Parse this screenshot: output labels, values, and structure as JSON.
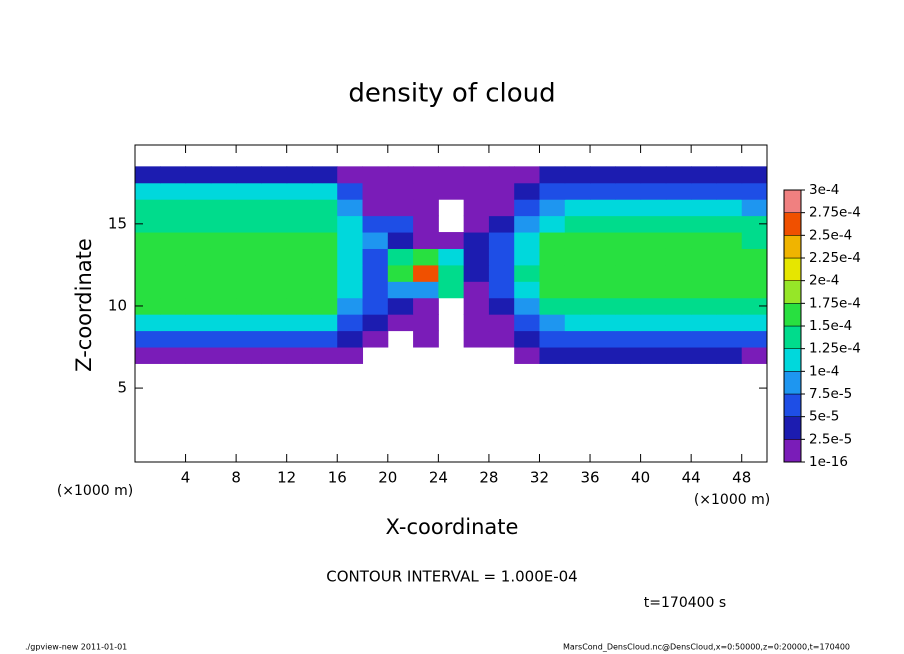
{
  "chart_data": {
    "type": "contour",
    "title": "density of cloud",
    "xlabel": "X-coordinate",
    "ylabel": "Z-coordinate",
    "x_unit_left": "(×1000 m)",
    "x_unit_right": "(×1000 m)",
    "contour_interval": "CONTOUR INTERVAL = 1.000E-04",
    "time_label": "t=170400 s",
    "footer_left": "./gpview-new  2011-01-01",
    "footer_right": "MarsCond_DensCloud.nc@DensCloud,x=0:50000,z=0:20000,t=170400",
    "xlim": [
      0,
      50
    ],
    "ylim": [
      0.5,
      19.8
    ],
    "xticks": [
      4,
      8,
      12,
      16,
      20,
      24,
      28,
      32,
      36,
      40,
      44,
      48
    ],
    "yticks": [
      5,
      10,
      15
    ],
    "x": [
      1,
      3,
      5,
      7,
      9,
      11,
      13,
      15,
      17,
      19,
      21,
      23,
      25,
      27,
      29,
      31,
      33,
      35,
      37,
      39,
      41,
      43,
      45,
      47,
      49
    ],
    "y": [
      7,
      8,
      9,
      10,
      11,
      12,
      13,
      14,
      15,
      16,
      17,
      18
    ],
    "z": [
      [
        2e-05,
        2e-05,
        2e-05,
        2e-05,
        2e-05,
        2e-05,
        2e-05,
        2e-05,
        1e-05,
        null,
        null,
        null,
        null,
        null,
        null,
        1e-05,
        3e-05,
        3e-05,
        3e-05,
        3e-05,
        3e-05,
        3e-05,
        3e-05,
        3e-05,
        2e-05
      ],
      [
        6e-05,
        6e-05,
        6e-05,
        6e-05,
        6e-05,
        6e-05,
        6e-05,
        6e-05,
        3e-05,
        1e-05,
        null,
        1e-05,
        null,
        1e-05,
        1e-05,
        3e-05,
        7e-05,
        7e-05,
        7e-05,
        7e-05,
        7e-05,
        7e-05,
        7e-05,
        7e-05,
        7e-05
      ],
      [
        0.00011,
        0.00011,
        0.00011,
        0.00011,
        0.00011,
        0.00011,
        0.00011,
        0.00011,
        6e-05,
        3e-05,
        2e-05,
        1e-05,
        null,
        1e-05,
        2e-05,
        5e-05,
        8e-05,
        0.00012,
        0.00012,
        0.00012,
        0.00012,
        0.00012,
        0.00012,
        0.00012,
        0.00012
      ],
      [
        0.00015,
        0.00015,
        0.00015,
        0.00015,
        0.00015,
        0.00015,
        0.00015,
        0.00015,
        9e-05,
        5e-05,
        3e-05,
        2e-05,
        null,
        1e-05,
        4e-05,
        8e-05,
        0.000145,
        0.000145,
        0.000145,
        0.000145,
        0.000145,
        0.000145,
        0.000145,
        0.000145,
        0.000145
      ],
      [
        0.00016,
        0.00016,
        0.00016,
        0.00016,
        0.00016,
        0.00016,
        0.00016,
        0.00016,
        0.0001,
        6e-05,
        9e-05,
        8e-05,
        0.00013,
        2e-05,
        5e-05,
        0.00011,
        0.000155,
        0.000155,
        0.000155,
        0.000155,
        0.000155,
        0.000155,
        0.000155,
        0.000155,
        0.000155
      ],
      [
        0.00016,
        0.00016,
        0.00016,
        0.00016,
        0.00016,
        0.00016,
        0.00016,
        0.00016,
        0.00011,
        7e-05,
        0.00017,
        0.00026,
        0.000145,
        3e-05,
        7e-05,
        0.00013,
        0.00016,
        0.00016,
        0.00016,
        0.00016,
        0.00016,
        0.00016,
        0.00016,
        0.00016,
        0.00016
      ],
      [
        0.000155,
        0.000155,
        0.000155,
        0.000155,
        0.000155,
        0.000155,
        0.000155,
        0.000155,
        0.00011,
        6e-05,
        0.00013,
        0.00015,
        0.00012,
        4e-05,
        5e-05,
        0.00012,
        0.000155,
        0.000155,
        0.000155,
        0.000155,
        0.000155,
        0.000155,
        0.000155,
        0.000155,
        0.000155
      ],
      [
        0.00015,
        0.00015,
        0.00015,
        0.00015,
        0.00015,
        0.00015,
        0.00015,
        0.00015,
        0.00011,
        8e-05,
        4e-05,
        2e-05,
        1e-05,
        3e-05,
        6e-05,
        0.00011,
        0.00015,
        0.00015,
        0.00015,
        0.00015,
        0.00015,
        0.00015,
        0.00015,
        0.00015,
        0.00013
      ],
      [
        0.000145,
        0.000145,
        0.000145,
        0.000145,
        0.000145,
        0.000145,
        0.000145,
        0.000145,
        0.0001,
        6e-05,
        6e-05,
        1e-05,
        null,
        1e-05,
        3e-05,
        8e-05,
        0.00011,
        0.00014,
        0.00014,
        0.00014,
        0.00014,
        0.00014,
        0.00014,
        0.00014,
        0.00014
      ],
      [
        0.00014,
        0.00014,
        0.00014,
        0.00014,
        0.00014,
        0.00014,
        0.00014,
        0.00014,
        8e-05,
        1e-05,
        1e-05,
        1e-05,
        null,
        1e-05,
        1e-05,
        6e-05,
        9e-05,
        0.00012,
        0.00012,
        0.00012,
        0.00012,
        0.00012,
        0.00012,
        0.00012,
        8e-05
      ],
      [
        0.0001,
        0.0001,
        0.0001,
        0.0001,
        0.0001,
        0.0001,
        0.0001,
        0.0001,
        5e-05,
        1e-05,
        1e-05,
        1e-05,
        1e-05,
        1e-05,
        1e-05,
        3e-05,
        5e-05,
        5e-05,
        5e-05,
        5e-05,
        5e-05,
        5e-05,
        5e-05,
        5e-05,
        5e-05
      ],
      [
        3e-05,
        3e-05,
        3e-05,
        3e-05,
        3e-05,
        3e-05,
        3e-05,
        3e-05,
        2e-05,
        1e-05,
        1e-05,
        1e-05,
        1e-05,
        1e-05,
        1e-05,
        2e-05,
        3e-05,
        3e-05,
        3e-05,
        3e-05,
        3e-05,
        3e-05,
        3e-05,
        3e-05,
        3e-05
      ]
    ],
    "levels": [
      {
        "value": 1e-16,
        "label": "1e-16"
      },
      {
        "value": 2.5e-05,
        "label": "2.5e-5"
      },
      {
        "value": 5e-05,
        "label": "5e-5"
      },
      {
        "value": 7.5e-05,
        "label": "7.5e-5"
      },
      {
        "value": 0.0001,
        "label": "1e-4"
      },
      {
        "value": 0.000125,
        "label": "1.25e-4"
      },
      {
        "value": 0.00015,
        "label": "1.5e-4"
      },
      {
        "value": 0.000175,
        "label": "1.75e-4"
      },
      {
        "value": 0.0002,
        "label": "2e-4"
      },
      {
        "value": 0.000225,
        "label": "2.25e-4"
      },
      {
        "value": 0.00025,
        "label": "2.5e-4"
      },
      {
        "value": 0.000275,
        "label": "2.75e-4"
      },
      {
        "value": 0.0003,
        "label": "3e-4"
      }
    ],
    "colors": [
      "#7a1cb8",
      "#1c1cb0",
      "#1e4ee6",
      "#1e96f0",
      "#00d8dc",
      "#00dc8c",
      "#28e040",
      "#96e628",
      "#e6e600",
      "#f0b400",
      "#f05000",
      "#f08080"
    ]
  }
}
